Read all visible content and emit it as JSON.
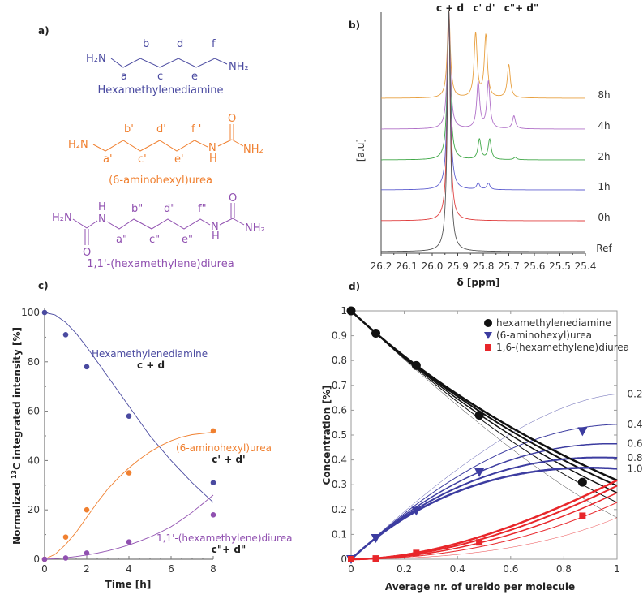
{
  "colors": {
    "hex": "#4a4aa0",
    "urea": "#f08030",
    "diurea": "#9050b0",
    "d_black": "#111111",
    "d_blue": "#3c3ca0",
    "d_red": "#e8262a"
  },
  "panel_a": {
    "label": "a)",
    "mol1": {
      "name": "Hexamethylenediamine",
      "left": "H₂N",
      "right": "NH₂",
      "top": [
        "b",
        "d",
        "f"
      ],
      "bottom": [
        "a",
        "c",
        "e"
      ]
    },
    "mol2": {
      "name": "(6-aminohexyl)urea",
      "left": "H₂N",
      "n": "N",
      "h": "H",
      "o": "O",
      "right": "NH₂",
      "top": [
        "b'",
        "d'",
        "f '"
      ],
      "bottom": [
        "a'",
        "c'",
        "e'"
      ]
    },
    "mol3": {
      "name": "1,1'-(hexamethylene)diurea",
      "left": "H₂N",
      "n": "N",
      "h": "H",
      "o": "O",
      "right": "NH₂",
      "top": [
        "b\"",
        "d\"",
        "f\""
      ],
      "bottom": [
        "a\"",
        "c\"",
        "e\""
      ]
    }
  },
  "chart_data": [
    {
      "panel": "b)",
      "type": "line",
      "title": "",
      "xlabel": "δ [ppm]",
      "ylabel": "[a.u]",
      "xlim": [
        26.2,
        25.4
      ],
      "xticks": [
        "26.2",
        "26.1",
        "26.0",
        "25.9",
        "25.8",
        "25.7",
        "25.6",
        "25.5",
        "25.4"
      ],
      "peak_labels": [
        "c + d",
        "c' d'",
        "c\"+ d\""
      ],
      "series": [
        {
          "name": "8h",
          "color": "#e8a040",
          "peaks_ppm": [
            25.935,
            25.83,
            25.79,
            25.7
          ],
          "rel_heights": [
            1.0,
            0.79,
            0.77,
            0.41
          ]
        },
        {
          "name": "4h",
          "color": "#b070c8",
          "peaks_ppm": [
            25.935,
            25.82,
            25.78,
            25.68
          ],
          "rel_heights": [
            1.0,
            0.57,
            0.58,
            0.16
          ]
        },
        {
          "name": "2h",
          "color": "#40a848",
          "peaks_ppm": [
            25.935,
            25.815,
            25.775,
            25.675
          ],
          "rel_heights": [
            1.0,
            0.25,
            0.25,
            0.03
          ]
        },
        {
          "name": "1h",
          "color": "#6060d0",
          "peaks_ppm": [
            25.935,
            25.82,
            25.78
          ],
          "rel_heights": [
            1.0,
            0.08,
            0.08
          ]
        },
        {
          "name": "0h",
          "color": "#e04040",
          "peaks_ppm": [
            25.935
          ],
          "rel_heights": [
            1.0
          ]
        },
        {
          "name": "Ref",
          "color": "#555555",
          "peaks_ppm": [
            25.935
          ],
          "rel_heights": [
            1.0
          ]
        }
      ]
    },
    {
      "panel": "c)",
      "type": "scatter",
      "xlabel": "Time [h]",
      "ylabel_pre": "Normalized ",
      "ylabel_sup": "13",
      "ylabel_post": "C integrated intensity [%]",
      "xlim": [
        0,
        8
      ],
      "ylim": [
        0,
        100
      ],
      "xticks": [
        0,
        2,
        4,
        6,
        8
      ],
      "yticks": [
        0,
        20,
        40,
        60,
        80,
        100
      ],
      "fit_x": [
        0,
        0.5,
        1,
        1.5,
        2,
        2.5,
        3,
        3.5,
        4,
        4.5,
        5,
        5.5,
        6,
        6.5,
        7,
        7.5,
        8
      ],
      "series": [
        {
          "name": "Hexamethylenediamine",
          "tag": "c + d",
          "color": "#4a4aa0",
          "x": [
            0,
            1,
            2,
            4,
            8
          ],
          "y": [
            100,
            91,
            78,
            58,
            31
          ],
          "fit": [
            100,
            99,
            96,
            91.5,
            86,
            80,
            74,
            68,
            62,
            56,
            50,
            45,
            40,
            35.5,
            31,
            27,
            23
          ]
        },
        {
          "name": "(6-aminohexyl)urea",
          "tag": "c' + d'",
          "color": "#f08030",
          "x": [
            0,
            1,
            2,
            4,
            8
          ],
          "y": [
            0,
            9,
            20,
            35,
            52
          ],
          "fit": [
            0,
            2,
            6,
            11,
            17,
            23,
            28.5,
            33,
            37,
            40.5,
            43.5,
            46,
            48,
            49.5,
            50.5,
            51,
            51.5
          ]
        },
        {
          "name": "1,1'-(hexamethylene)diurea",
          "tag": "c\"+ d\"",
          "color": "#9050b0",
          "x": [
            0,
            1,
            2,
            4,
            8
          ],
          "y": [
            0,
            0.5,
            2.5,
            7,
            18
          ],
          "fit": [
            0,
            0.2,
            0.6,
            1.1,
            1.7,
            2.5,
            3.4,
            4.5,
            5.8,
            7.3,
            9,
            11,
            13.2,
            16,
            19,
            22.5,
            26
          ]
        }
      ]
    },
    {
      "panel": "d)",
      "type": "line",
      "xlabel": "Average nr. of ureido per molecule",
      "ylabel": "Concentration [%]",
      "xlim": [
        0,
        1
      ],
      "ylim": [
        0,
        1
      ],
      "xticks": [
        "0",
        "0.2",
        "0.4",
        "0.6",
        "0.8",
        "1"
      ],
      "yticks": [
        "0",
        "0.1",
        "0.2",
        "0.3",
        "0.4",
        "0.5",
        "0.6",
        "0.7",
        "0.8",
        "0.9",
        "1"
      ],
      "rate_ratios": [
        0.2,
        0.4,
        0.6,
        0.8,
        1.0
      ],
      "rate_ratio_labels": [
        "0.2",
        "0.4",
        "0.6",
        "0.8",
        "1.0"
      ],
      "legend_position": "top-right",
      "series": [
        {
          "name": "hexamethylenediamine",
          "marker": "circle",
          "color": "#111111",
          "x": [
            0,
            0.093,
            0.245,
            0.482,
            0.87
          ],
          "y": [
            1.0,
            0.91,
            0.78,
            0.58,
            0.31
          ]
        },
        {
          "name": "(6-aminohexyl)urea",
          "marker": "triangle-down",
          "color": "#3c3ca0",
          "x": [
            0,
            0.093,
            0.245,
            0.482,
            0.87
          ],
          "y": [
            0,
            0.085,
            0.195,
            0.35,
            0.515
          ]
        },
        {
          "name": "1,6-(hexamethylene)diurea",
          "marker": "square",
          "color": "#e8262a",
          "x": [
            0,
            0.093,
            0.245,
            0.482,
            0.87
          ],
          "y": [
            0,
            0.003,
            0.025,
            0.068,
            0.175
          ]
        }
      ]
    }
  ]
}
